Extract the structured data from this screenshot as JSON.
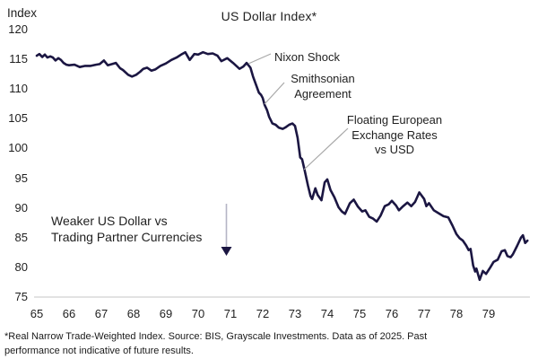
{
  "header": {
    "title": "US Dollar Index*",
    "y_axis_unit_label": "Index"
  },
  "annotations": {
    "nixon_shock": "Nixon Shock",
    "smithsonian": "Smithsonian\nAgreement",
    "floating_rates": "Floating European\nExchange Rates\nvs USD",
    "weaker_dollar": "Weaker US Dollar vs\nTrading Partner Currencies"
  },
  "footnote": "*Real Narrow Trade-Weighted Index. Source: BIS, Grayscale Investments. Data as of 2025. Past\nperformance not indicative of future results.",
  "colors": {
    "line": "#1b1642",
    "leader_line": "#a8a8a8",
    "axis_line": "#d9d9d9",
    "arrow_shaft": "#b5b5c5",
    "arrow_head": "#1b1642",
    "text": "#1f1f1f"
  },
  "chart_data": {
    "type": "line",
    "title": "US Dollar Index*",
    "xlabel": "",
    "ylabel": "Index",
    "ylim": [
      75,
      120
    ],
    "y_ticks": [
      120,
      115,
      110,
      105,
      100,
      95,
      90,
      85,
      80,
      75
    ],
    "x_ticks": [
      "65",
      "66",
      "67",
      "68",
      "69",
      "70",
      "71",
      "72",
      "73",
      "74",
      "75",
      "76",
      "77",
      "78",
      "79"
    ],
    "x_range_years": [
      1965,
      1980.2
    ],
    "grid": false,
    "legend_position": "none",
    "events": [
      {
        "label": "Nixon Shock",
        "year": 1971.6
      },
      {
        "label": "Smithsonian Agreement",
        "year": 1971.95
      },
      {
        "label": "Floating European Exchange Rates vs USD",
        "year": 1973.2
      }
    ],
    "series": [
      {
        "name": "US Dollar Index (Real Narrow Trade-Weighted)",
        "points": [
          [
            1965.0,
            115.6
          ],
          [
            1965.08,
            115.9
          ],
          [
            1965.17,
            115.4
          ],
          [
            1965.25,
            115.8
          ],
          [
            1965.33,
            115.3
          ],
          [
            1965.42,
            115.5
          ],
          [
            1965.5,
            115.3
          ],
          [
            1965.58,
            114.8
          ],
          [
            1965.67,
            115.2
          ],
          [
            1965.75,
            114.9
          ],
          [
            1965.83,
            114.4
          ],
          [
            1965.92,
            114.1
          ],
          [
            1966.0,
            114.0
          ],
          [
            1966.17,
            114.1
          ],
          [
            1966.33,
            113.7
          ],
          [
            1966.5,
            113.9
          ],
          [
            1966.67,
            113.9
          ],
          [
            1966.83,
            114.1
          ],
          [
            1966.95,
            114.2
          ],
          [
            1967.08,
            114.8
          ],
          [
            1967.2,
            114.0
          ],
          [
            1967.33,
            114.2
          ],
          [
            1967.45,
            114.4
          ],
          [
            1967.58,
            113.5
          ],
          [
            1967.67,
            113.2
          ],
          [
            1967.83,
            112.4
          ],
          [
            1967.95,
            112.1
          ],
          [
            1968.08,
            112.4
          ],
          [
            1968.2,
            112.9
          ],
          [
            1968.3,
            113.4
          ],
          [
            1968.42,
            113.6
          ],
          [
            1968.55,
            113.1
          ],
          [
            1968.67,
            113.3
          ],
          [
            1968.83,
            113.9
          ],
          [
            1969.0,
            114.3
          ],
          [
            1969.17,
            114.9
          ],
          [
            1969.33,
            115.3
          ],
          [
            1969.5,
            115.9
          ],
          [
            1969.6,
            116.2
          ],
          [
            1969.74,
            114.9
          ],
          [
            1969.88,
            115.9
          ],
          [
            1970.0,
            115.8
          ],
          [
            1970.15,
            116.2
          ],
          [
            1970.3,
            115.9
          ],
          [
            1970.45,
            116.0
          ],
          [
            1970.6,
            115.6
          ],
          [
            1970.72,
            114.7
          ],
          [
            1970.9,
            115.2
          ],
          [
            1971.08,
            114.4
          ],
          [
            1971.28,
            113.4
          ],
          [
            1971.4,
            113.8
          ],
          [
            1971.5,
            114.4
          ],
          [
            1971.62,
            113.6
          ],
          [
            1971.7,
            112.1
          ],
          [
            1971.8,
            110.6
          ],
          [
            1971.88,
            109.4
          ],
          [
            1971.95,
            109.0
          ],
          [
            1972.0,
            108.5
          ],
          [
            1972.06,
            107.3
          ],
          [
            1972.13,
            106.5
          ],
          [
            1972.2,
            105.3
          ],
          [
            1972.3,
            104.2
          ],
          [
            1972.4,
            104.0
          ],
          [
            1972.5,
            103.5
          ],
          [
            1972.62,
            103.3
          ],
          [
            1972.72,
            103.6
          ],
          [
            1972.82,
            104.0
          ],
          [
            1972.92,
            104.2
          ],
          [
            1973.0,
            103.8
          ],
          [
            1973.08,
            101.8
          ],
          [
            1973.16,
            98.5
          ],
          [
            1973.22,
            98.2
          ],
          [
            1973.3,
            96.3
          ],
          [
            1973.4,
            93.8
          ],
          [
            1973.48,
            92.0
          ],
          [
            1973.53,
            91.5
          ],
          [
            1973.63,
            93.3
          ],
          [
            1973.7,
            92.2
          ],
          [
            1973.82,
            91.3
          ],
          [
            1973.92,
            94.3
          ],
          [
            1974.0,
            94.8
          ],
          [
            1974.1,
            93.0
          ],
          [
            1974.22,
            91.8
          ],
          [
            1974.35,
            90.1
          ],
          [
            1974.45,
            89.4
          ],
          [
            1974.55,
            89.0
          ],
          [
            1974.7,
            90.8
          ],
          [
            1974.82,
            91.4
          ],
          [
            1974.95,
            90.2
          ],
          [
            1975.08,
            89.4
          ],
          [
            1975.18,
            89.6
          ],
          [
            1975.3,
            88.5
          ],
          [
            1975.42,
            88.2
          ],
          [
            1975.53,
            87.7
          ],
          [
            1975.65,
            88.7
          ],
          [
            1975.78,
            90.3
          ],
          [
            1975.9,
            90.6
          ],
          [
            1976.0,
            91.2
          ],
          [
            1976.13,
            90.4
          ],
          [
            1976.22,
            89.6
          ],
          [
            1976.35,
            90.3
          ],
          [
            1976.48,
            90.9
          ],
          [
            1976.6,
            90.3
          ],
          [
            1976.72,
            91.0
          ],
          [
            1976.85,
            92.6
          ],
          [
            1977.0,
            91.5
          ],
          [
            1977.07,
            90.3
          ],
          [
            1977.15,
            90.8
          ],
          [
            1977.3,
            89.6
          ],
          [
            1977.45,
            89.1
          ],
          [
            1977.6,
            88.6
          ],
          [
            1977.75,
            88.4
          ],
          [
            1977.88,
            87.0
          ],
          [
            1978.0,
            85.6
          ],
          [
            1978.1,
            84.9
          ],
          [
            1978.2,
            84.5
          ],
          [
            1978.3,
            83.7
          ],
          [
            1978.38,
            82.9
          ],
          [
            1978.44,
            83.1
          ],
          [
            1978.52,
            80.3
          ],
          [
            1978.58,
            79.3
          ],
          [
            1978.62,
            79.8
          ],
          [
            1978.72,
            77.9
          ],
          [
            1978.82,
            79.4
          ],
          [
            1978.92,
            78.9
          ],
          [
            1979.05,
            80.0
          ],
          [
            1979.15,
            80.9
          ],
          [
            1979.28,
            81.3
          ],
          [
            1979.4,
            82.7
          ],
          [
            1979.5,
            82.9
          ],
          [
            1979.58,
            81.9
          ],
          [
            1979.68,
            81.7
          ],
          [
            1979.75,
            82.2
          ],
          [
            1979.88,
            83.6
          ],
          [
            1980.0,
            85.0
          ],
          [
            1980.06,
            85.4
          ],
          [
            1980.13,
            84.1
          ],
          [
            1980.2,
            84.5
          ]
        ]
      }
    ]
  }
}
